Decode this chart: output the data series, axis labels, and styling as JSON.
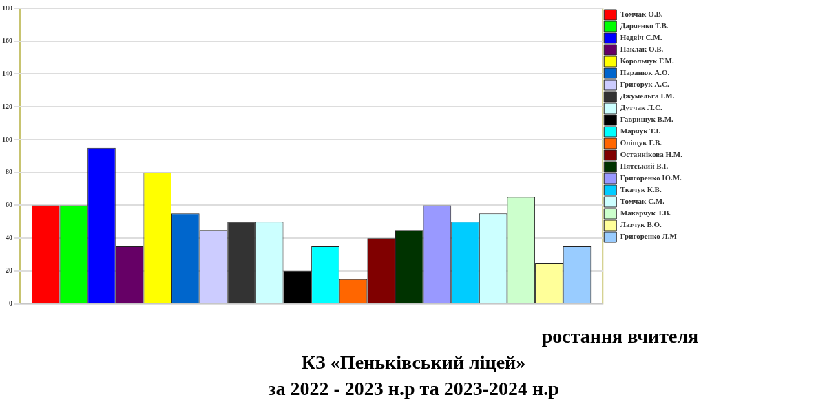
{
  "chart_data": {
    "type": "bar",
    "title": "ростання вчителя",
    "subtitle": "КЗ «Пеньківський ліцей»\nза 2022 - 2023 н.р та 2023-2024 н.р",
    "categories": [
      null
    ],
    "series": [
      {
        "name": "Томчак О.В.",
        "color": "#ff0000",
        "values": [
          60
        ]
      },
      {
        "name": "Дарченко Т.В.",
        "color": "#00ff00",
        "values": [
          60
        ]
      },
      {
        "name": "Недвіч С.М.",
        "color": "#0000ff",
        "values": [
          95
        ]
      },
      {
        "name": "Паклак О.В.",
        "color": "#660066",
        "values": [
          35
        ]
      },
      {
        "name": "Корольчук Г.М.",
        "color": "#ffff00",
        "values": [
          80
        ]
      },
      {
        "name": "Паранюк А.О.",
        "color": "#0066cc",
        "values": [
          55
        ]
      },
      {
        "name": "Григорук А.С.",
        "color": "#ccccff",
        "values": [
          45
        ]
      },
      {
        "name": "Джумельга І.М.",
        "color": "#333333",
        "values": [
          50
        ]
      },
      {
        "name": "Дутчак Л.С.",
        "color": "#ccffff",
        "values": [
          50
        ]
      },
      {
        "name": "Гаврищук В.М.",
        "color": "#000000",
        "values": [
          20
        ]
      },
      {
        "name": "Марчук Т.І.",
        "color": "#00ffff",
        "values": [
          35
        ]
      },
      {
        "name": "Оліщук Г.В.",
        "color": "#ff6600",
        "values": [
          15
        ]
      },
      {
        "name": "Останнікова Н.М.",
        "color": "#800000",
        "values": [
          40
        ]
      },
      {
        "name": "Пятський В.І.",
        "color": "#003300",
        "values": [
          45
        ]
      },
      {
        "name": "Григоренко Ю.М.",
        "color": "#9999ff",
        "values": [
          60
        ]
      },
      {
        "name": "Ткачук К.В.",
        "color": "#00ccff",
        "values": [
          50
        ]
      },
      {
        "name": "Томчак С.М.",
        "color": "#ccffff",
        "values": [
          55
        ]
      },
      {
        "name": "Макарчук Т.В.",
        "color": "#ccffcc",
        "values": [
          65
        ]
      },
      {
        "name": "Лазчук В.О.",
        "color": "#ffff99",
        "values": [
          25
        ]
      },
      {
        "name": "Григоренко Л.М",
        "color": "#99ccff",
        "values": [
          35
        ]
      }
    ],
    "ylim": [
      0,
      180
    ],
    "yticks": [
      0,
      20,
      40,
      60,
      80,
      100,
      120,
      140,
      160,
      180
    ],
    "grid": "y",
    "legend": "right"
  }
}
